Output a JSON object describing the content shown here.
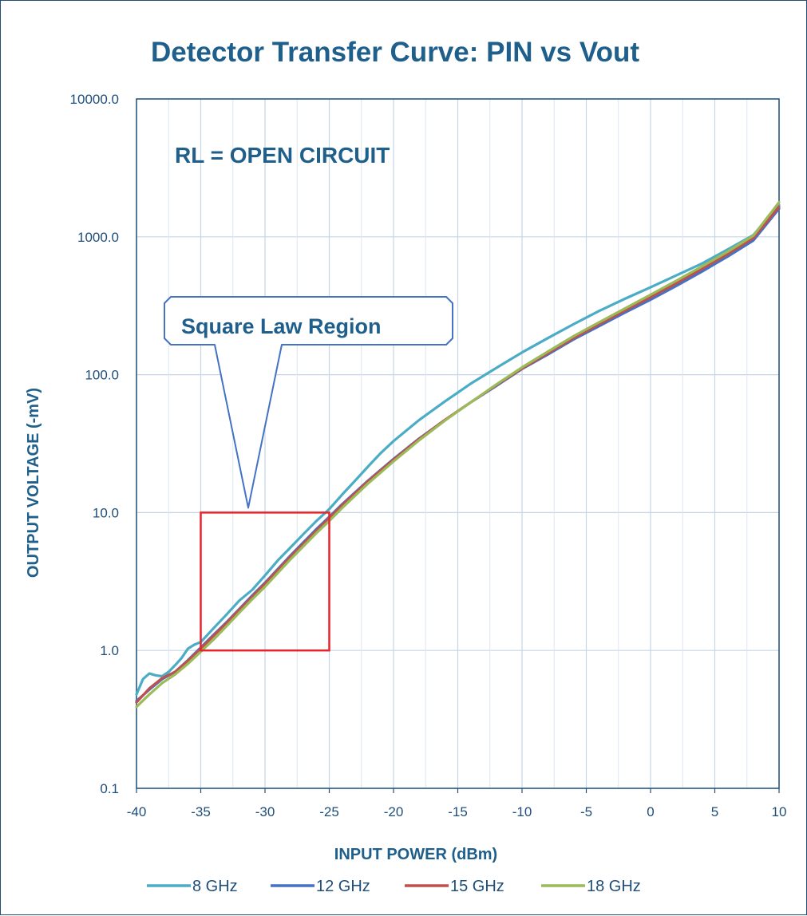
{
  "chart_data": {
    "type": "line",
    "title": "Detector Transfer Curve: PIN vs Vout",
    "xlabel": "INPUT POWER (dBm)",
    "ylabel": "OUTPUT VOLTAGE (-mV)",
    "x_ticks": [
      "-40",
      "-35",
      "-30",
      "-25",
      "-20",
      "-15",
      "-10",
      "-5",
      "0",
      "5",
      "10"
    ],
    "y_ticks": [
      "0.1",
      "1.0",
      "10.0",
      "100.0",
      "1000.0",
      "10000.0"
    ],
    "xlim": [
      -40,
      10
    ],
    "ylim": [
      0.1,
      10000
    ],
    "y_scale": "log",
    "grid": true,
    "legend_position": "bottom",
    "annotations": {
      "condition": "RL = OPEN CIRCUIT",
      "region_callout": "Square Law Region",
      "region_box": {
        "x": [
          -35,
          -25
        ],
        "y": [
          1,
          10
        ],
        "color": "#e8232a"
      }
    },
    "series": [
      {
        "name": "8 GHz",
        "color": "#4bacc6",
        "x": [
          -40,
          -39.5,
          -39,
          -38.5,
          -38,
          -37.5,
          -37,
          -36.5,
          -36,
          -35.5,
          -35,
          -34,
          -33,
          -32,
          -31,
          -30,
          -29,
          -28,
          -27,
          -26,
          -25,
          -24,
          -23,
          -22,
          -21,
          -20,
          -18,
          -16,
          -14,
          -12,
          -10,
          -8,
          -6,
          -4,
          -2,
          0,
          2,
          4,
          6,
          8,
          10
        ],
        "y": [
          0.48,
          0.62,
          0.68,
          0.66,
          0.65,
          0.7,
          0.78,
          0.88,
          1.03,
          1.1,
          1.15,
          1.45,
          1.82,
          2.3,
          2.75,
          3.5,
          4.5,
          5.6,
          7.0,
          8.7,
          10.6,
          13.5,
          17.0,
          21.5,
          27,
          33,
          47,
          64,
          86,
          112,
          145,
          184,
          232,
          290,
          355,
          430,
          525,
          640,
          810,
          1030,
          1700
        ]
      },
      {
        "name": "12 GHz",
        "color": "#4472c4",
        "x": [
          -40,
          -39,
          -38,
          -37,
          -36,
          -35,
          -34,
          -33,
          -32,
          -31,
          -30,
          -28,
          -26,
          -25,
          -24,
          -22,
          -20,
          -18,
          -16,
          -14,
          -12,
          -10,
          -8,
          -6,
          -4,
          -2,
          0,
          2,
          4,
          6,
          8,
          10
        ],
        "y": [
          0.43,
          0.52,
          0.62,
          0.7,
          0.85,
          1.05,
          1.3,
          1.6,
          2.0,
          2.5,
          3.1,
          4.9,
          7.6,
          9.3,
          11.5,
          17.0,
          24.5,
          34.5,
          47,
          63,
          83,
          110,
          140,
          180,
          225,
          282,
          350,
          440,
          560,
          720,
          940,
          1600
        ]
      },
      {
        "name": "15 GHz",
        "color": "#c0504d",
        "x": [
          -40,
          -39,
          -38,
          -37,
          -36,
          -35,
          -34,
          -33,
          -32,
          -31,
          -30,
          -28,
          -26,
          -25,
          -24,
          -22,
          -20,
          -18,
          -16,
          -14,
          -12,
          -10,
          -8,
          -6,
          -4,
          -2,
          0,
          2,
          4,
          6,
          8,
          10
        ],
        "y": [
          0.42,
          0.53,
          0.63,
          0.7,
          0.84,
          1.03,
          1.28,
          1.58,
          1.97,
          2.45,
          3.05,
          4.8,
          7.4,
          9.1,
          11.3,
          16.8,
          24.2,
          34.2,
          47,
          63,
          84,
          111,
          143,
          184,
          232,
          292,
          365,
          460,
          585,
          750,
          980,
          1650
        ]
      },
      {
        "name": "18 GHz",
        "color": "#9bbb59",
        "x": [
          -40,
          -39,
          -38,
          -37,
          -36,
          -35,
          -34,
          -33,
          -32,
          -31,
          -30,
          -28,
          -26,
          -25,
          -24,
          -22,
          -20,
          -18,
          -16,
          -14,
          -12,
          -10,
          -8,
          -6,
          -4,
          -2,
          0,
          2,
          4,
          6,
          8,
          10
        ],
        "y": [
          0.39,
          0.48,
          0.58,
          0.67,
          0.8,
          0.98,
          1.2,
          1.5,
          1.88,
          2.35,
          2.9,
          4.6,
          7.1,
          8.7,
          10.8,
          16.2,
          23.5,
          33.5,
          46.5,
          63,
          85,
          113,
          147,
          190,
          240,
          302,
          380,
          480,
          610,
          780,
          1020,
          1780
        ]
      }
    ]
  }
}
